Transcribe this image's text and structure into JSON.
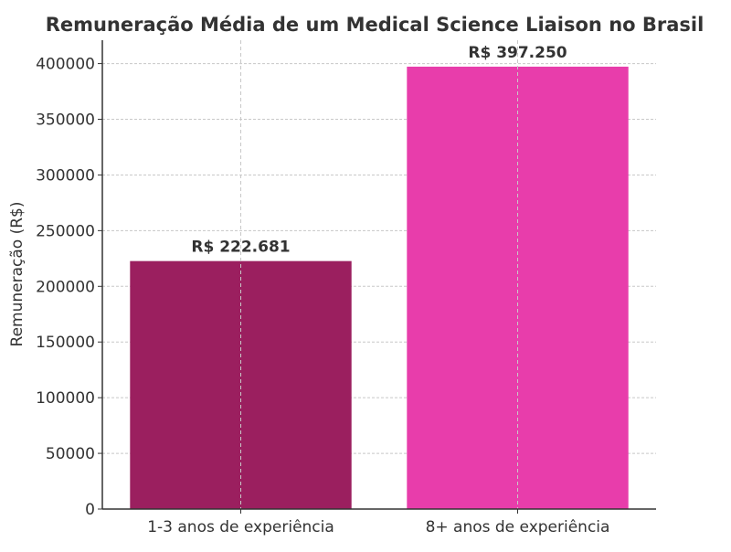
{
  "chart_data": {
    "type": "bar",
    "title": "Remuneração Média de um Medical Science Liaison no Brasil",
    "xlabel": "",
    "ylabel": "Remuneração (R$)",
    "categories": [
      "1-3 anos de experiência",
      "8+ anos de experiência"
    ],
    "values": [
      222681,
      397250
    ],
    "data_labels": [
      "R$ 222.681",
      "R$ 397.250"
    ],
    "colors": [
      "#9B1F5F",
      "#E83DAB"
    ],
    "ylim": [
      0,
      421000
    ],
    "yticks": [
      0,
      50000,
      100000,
      150000,
      200000,
      250000,
      300000,
      350000,
      400000
    ],
    "ytick_labels": [
      "0",
      "50000",
      "100000",
      "150000",
      "200000",
      "250000",
      "300000",
      "350000",
      "400000"
    ],
    "grid": true,
    "legend": "none"
  }
}
